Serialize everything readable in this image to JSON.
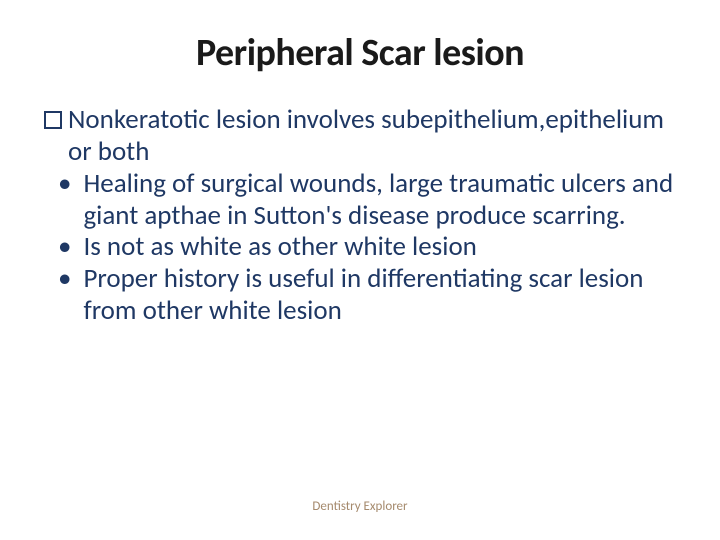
{
  "slide": {
    "title": "Peripheral Scar lesion",
    "title_fontsize": 38,
    "title_color": "#1a1a1a",
    "body_fontsize": 27,
    "body_color": "#1f3864",
    "background_color": "#ffffff",
    "checkbox_item": {
      "text": "Nonkeratotic lesion involves subepithelium,epithelium or both"
    },
    "bullets": [
      {
        "text": "Healing of surgical wounds, large traumatic ulcers and giant apthae in Sutton's disease produce scarring."
      },
      {
        "text": "Is not as white as other white lesion"
      },
      {
        "text": "Proper history is useful in differentiating scar lesion from other white lesion"
      }
    ],
    "footer": {
      "text": "Dentistry Explorer",
      "fontsize": 13,
      "color": "#a58a6d"
    }
  }
}
